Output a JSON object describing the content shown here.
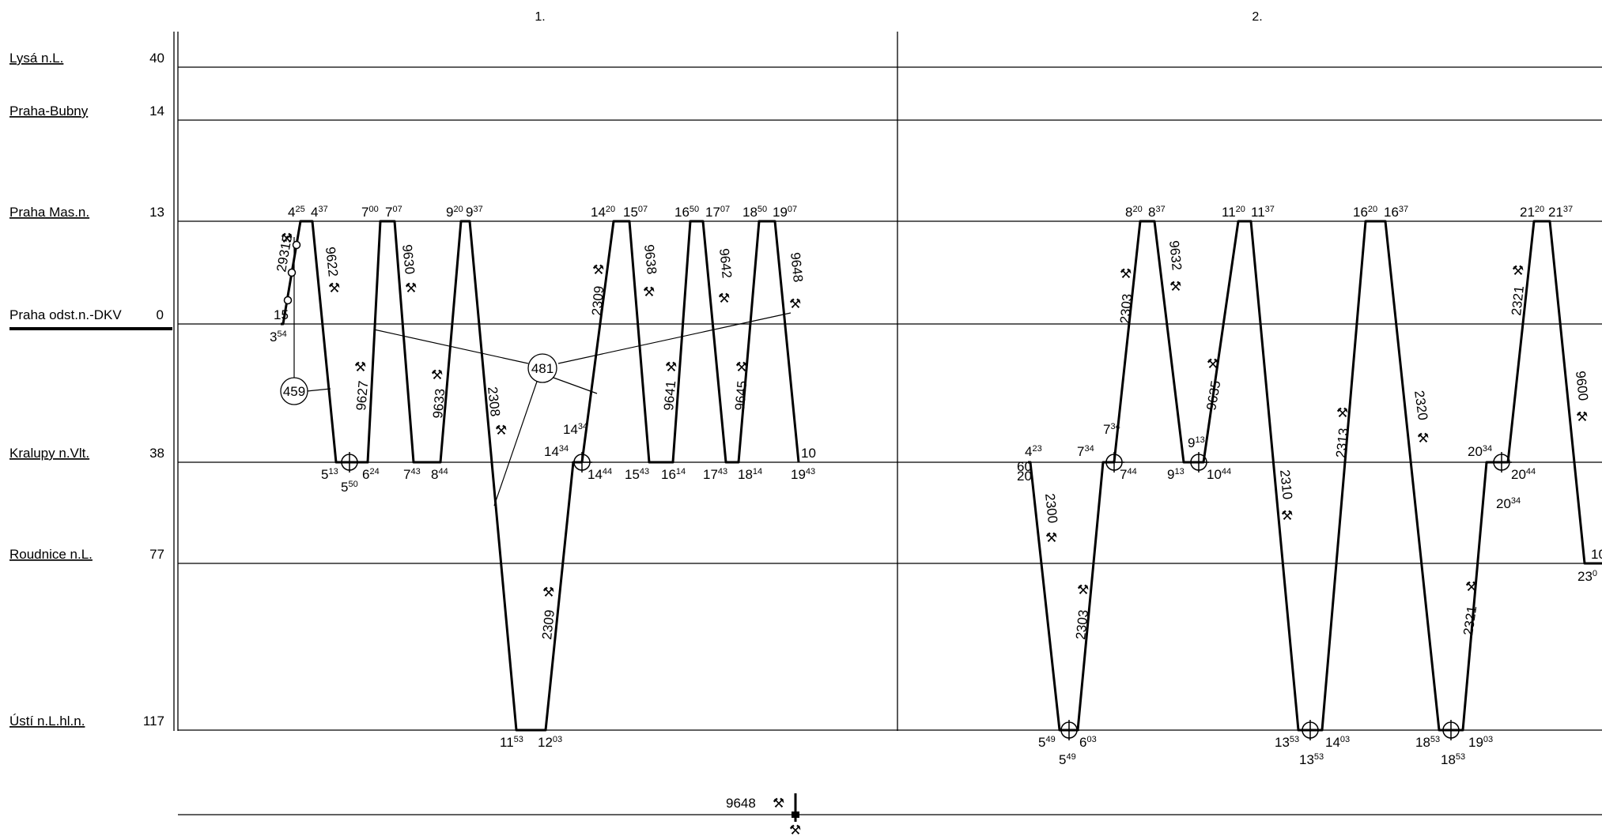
{
  "periods": [
    "1.",
    "2."
  ],
  "stations": [
    {
      "name": "Lysá n.L.",
      "code": "40"
    },
    {
      "name": "Praha-Bubny",
      "code": "14"
    },
    {
      "name": "Praha Mas.n.",
      "code": "13"
    },
    {
      "name": "Praha odst.n.-DKV",
      "code": "0"
    },
    {
      "name": "Kralupy n.Vlt.",
      "code": "38"
    },
    {
      "name": "Roudnice n.L.",
      "code": "77"
    },
    {
      "name": "Ústí n.L.hl.n.",
      "code": "117"
    }
  ],
  "circle_labels": [
    "459",
    "481"
  ],
  "train_numbers": [
    "29315",
    "9622",
    "9630",
    "9627",
    "9633",
    "2308",
    "2309",
    "9638",
    "9642",
    "9641",
    "9645",
    "9648",
    "2309",
    "2303",
    "9632",
    "9635",
    "2300",
    "2303",
    "2310",
    "2313",
    "2320",
    "2321",
    "9600",
    "2321"
  ],
  "times": [
    [
      "4",
      "25"
    ],
    [
      "4",
      "37"
    ],
    [
      "7",
      "00"
    ],
    [
      "7",
      "07"
    ],
    [
      "9",
      "20"
    ],
    [
      "9",
      "37"
    ],
    [
      "14",
      "20"
    ],
    [
      "15",
      "07"
    ],
    [
      "16",
      "50"
    ],
    [
      "17",
      "07"
    ],
    [
      "18",
      "50"
    ],
    [
      "19",
      "07"
    ],
    [
      "3",
      "54"
    ],
    [
      "15",
      ""
    ],
    [
      "5",
      "13"
    ],
    [
      "5",
      "50"
    ],
    [
      "6",
      "24"
    ],
    [
      "7",
      "43"
    ],
    [
      "8",
      "44"
    ],
    [
      "14",
      "34"
    ],
    [
      "14",
      "34"
    ],
    [
      "14",
      "44"
    ],
    [
      "15",
      "43"
    ],
    [
      "16",
      "14"
    ],
    [
      "17",
      "43"
    ],
    [
      "18",
      "14"
    ],
    [
      "19",
      "43"
    ],
    [
      "10",
      ""
    ],
    [
      "11",
      "53"
    ],
    [
      "12",
      "03"
    ],
    [
      "8",
      "20"
    ],
    [
      "8",
      "37"
    ],
    [
      "11",
      "20"
    ],
    [
      "11",
      "37"
    ],
    [
      "16",
      "20"
    ],
    [
      "16",
      "37"
    ],
    [
      "21",
      "20"
    ],
    [
      "21",
      "37"
    ],
    [
      "4",
      "23"
    ],
    [
      "60",
      ""
    ],
    [
      "20",
      ""
    ],
    [
      "7",
      "34"
    ],
    [
      "7",
      "34"
    ],
    [
      "7",
      "44"
    ],
    [
      "9",
      "13"
    ],
    [
      "9",
      "13"
    ],
    [
      "10",
      "44"
    ],
    [
      "20",
      "34"
    ],
    [
      "20",
      "44"
    ],
    [
      "20",
      "34"
    ],
    [
      "5",
      "49"
    ],
    [
      "6",
      "03"
    ],
    [
      "5",
      "49"
    ],
    [
      "13",
      "53"
    ],
    [
      "14",
      "03"
    ],
    [
      "13",
      "53"
    ],
    [
      "18",
      "53"
    ],
    [
      "19",
      "03"
    ],
    [
      "18",
      "53"
    ],
    [
      "10",
      ""
    ],
    [
      "23",
      "0"
    ]
  ],
  "legend": {
    "train": "9648",
    "icon": "hammer-icon"
  }
}
